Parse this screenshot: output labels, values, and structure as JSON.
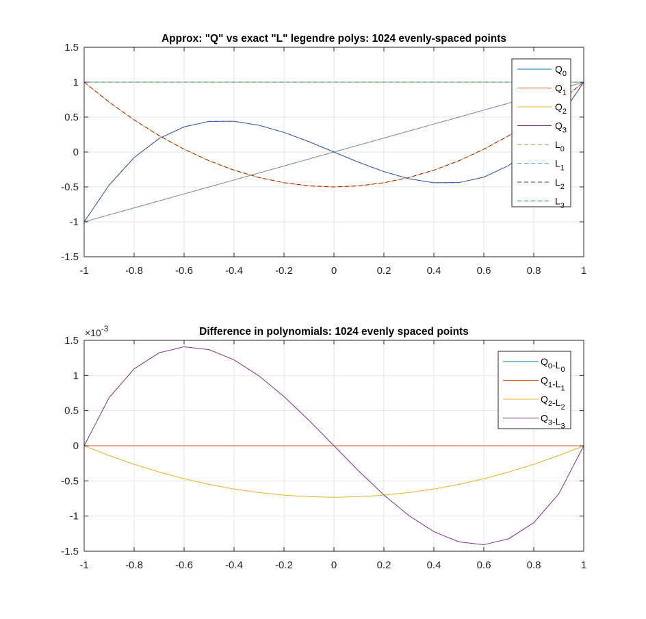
{
  "chart_data": [
    {
      "type": "line",
      "title": "Approx: \"Q\" vs exact \"L\" legendre polys: 1024 evenly-spaced points",
      "xlabel": "",
      "ylabel": "",
      "xlim": [
        -1,
        1
      ],
      "ylim": [
        -1.5,
        1.5
      ],
      "xticks": [
        -1,
        -0.8,
        -0.6,
        -0.4,
        -0.2,
        0,
        0.2,
        0.4,
        0.6,
        0.8,
        1
      ],
      "xtick_labels": [
        "-1",
        "-0.8",
        "-0.6",
        "-0.4",
        "-0.2",
        "0",
        "0.2",
        "0.4",
        "0.6",
        "0.8",
        "1"
      ],
      "yticks": [
        -1.5,
        -1,
        -0.5,
        0,
        0.5,
        1,
        1.5
      ],
      "ytick_labels": [
        "-1.5",
        "-1",
        "-0.5",
        "0",
        "0.5",
        "1",
        "1.5"
      ],
      "grid": true,
      "legend_position": "top-right",
      "x": [
        -1,
        -0.9,
        -0.8,
        -0.7,
        -0.6,
        -0.5,
        -0.4,
        -0.3,
        -0.2,
        -0.1,
        0,
        0.1,
        0.2,
        0.3,
        0.4,
        0.5,
        0.6,
        0.7,
        0.8,
        0.9,
        1
      ],
      "series": [
        {
          "name": "Q",
          "sub": "0",
          "color": "#0072BD",
          "dash": "solid",
          "values": [
            1,
            1,
            1,
            1,
            1,
            1,
            1,
            1,
            1,
            1,
            1,
            1,
            1,
            1,
            1,
            1,
            1,
            1,
            1,
            1,
            1
          ]
        },
        {
          "name": "Q",
          "sub": "1",
          "color": "#D95319",
          "dash": "solid",
          "values": [
            -1,
            -0.9,
            -0.8,
            -0.7,
            -0.6,
            -0.5,
            -0.4,
            -0.3,
            -0.2,
            -0.1,
            0,
            0.1,
            0.2,
            0.3,
            0.4,
            0.5,
            0.6,
            0.7,
            0.8,
            0.9,
            1
          ]
        },
        {
          "name": "Q",
          "sub": "2",
          "color": "#EDB120",
          "dash": "solid",
          "values": [
            1,
            0.715,
            0.46,
            0.235,
            0.04,
            -0.125,
            -0.26,
            -0.365,
            -0.44,
            -0.485,
            -0.5,
            -0.485,
            -0.44,
            -0.365,
            -0.26,
            -0.125,
            0.04,
            0.235,
            0.46,
            0.715,
            1
          ]
        },
        {
          "name": "Q",
          "sub": "3",
          "color": "#7E2F8E",
          "dash": "solid",
          "values": [
            -1,
            -0.473,
            -0.08,
            0.193,
            0.36,
            0.438,
            0.44,
            0.383,
            0.28,
            0.148,
            0,
            -0.148,
            -0.28,
            -0.383,
            -0.44,
            -0.438,
            -0.36,
            -0.193,
            0.08,
            0.473,
            1
          ]
        },
        {
          "name": "L",
          "sub": "0",
          "color": "#77AC30",
          "dash": "dashed",
          "values": [
            1,
            1,
            1,
            1,
            1,
            1,
            1,
            1,
            1,
            1,
            1,
            1,
            1,
            1,
            1,
            1,
            1,
            1,
            1,
            1,
            1
          ]
        },
        {
          "name": "L",
          "sub": "1",
          "color": "#4DBEEE",
          "dash": "dashed",
          "values": [
            -1,
            -0.9,
            -0.8,
            -0.7,
            -0.6,
            -0.5,
            -0.4,
            -0.3,
            -0.2,
            -0.1,
            0,
            0.1,
            0.2,
            0.3,
            0.4,
            0.5,
            0.6,
            0.7,
            0.8,
            0.9,
            1
          ]
        },
        {
          "name": "L",
          "sub": "2",
          "color": "#A2142F",
          "dash": "dashed",
          "values": [
            1,
            0.715,
            0.46,
            0.235,
            0.04,
            -0.125,
            -0.26,
            -0.365,
            -0.44,
            -0.485,
            -0.5,
            -0.485,
            -0.44,
            -0.365,
            -0.26,
            -0.125,
            0.04,
            0.235,
            0.46,
            0.715,
            1
          ]
        },
        {
          "name": "L",
          "sub": "3",
          "color": "#0072BD",
          "dash": "dashed",
          "values": [
            -1,
            -0.473,
            -0.08,
            0.193,
            0.36,
            0.438,
            0.44,
            0.383,
            0.28,
            0.148,
            0,
            -0.148,
            -0.28,
            -0.383,
            -0.44,
            -0.438,
            -0.36,
            -0.193,
            0.08,
            0.473,
            1
          ]
        }
      ]
    },
    {
      "type": "line",
      "title": "Difference in polynomials: 1024 evenly spaced points",
      "xlabel": "",
      "ylabel": "",
      "y_exponent_label": "×10",
      "y_exponent_value": "-3",
      "xlim": [
        -1,
        1
      ],
      "ylim": [
        -1.5,
        1.5
      ],
      "xticks": [
        -1,
        -0.8,
        -0.6,
        -0.4,
        -0.2,
        0,
        0.2,
        0.4,
        0.6,
        0.8,
        1
      ],
      "xtick_labels": [
        "-1",
        "-0.8",
        "-0.6",
        "-0.4",
        "-0.2",
        "0",
        "0.2",
        "0.4",
        "0.6",
        "0.8",
        "1"
      ],
      "yticks": [
        -1.5,
        -1,
        -0.5,
        0,
        0.5,
        1,
        1.5
      ],
      "ytick_labels": [
        "-1.5",
        "-1",
        "-0.5",
        "0",
        "0.5",
        "1",
        "1.5"
      ],
      "grid": true,
      "legend_position": "top-right",
      "x": [
        -1,
        -0.9,
        -0.8,
        -0.7,
        -0.6,
        -0.5,
        -0.4,
        -0.3,
        -0.2,
        -0.1,
        0,
        0.1,
        0.2,
        0.3,
        0.4,
        0.5,
        0.6,
        0.7,
        0.8,
        0.9,
        1
      ],
      "series": [
        {
          "name": "Q",
          "sub": "0",
          "name2": "-L",
          "sub2": "0",
          "color": "#0072BD",
          "dash": "solid",
          "values": [
            0,
            0,
            0,
            0,
            0,
            0,
            0,
            0,
            0,
            0,
            0,
            0,
            0,
            0,
            0,
            0,
            0,
            0,
            0,
            0,
            0
          ]
        },
        {
          "name": "Q",
          "sub": "1",
          "name2": "-L",
          "sub2": "1",
          "color": "#D95319",
          "dash": "solid",
          "values": [
            0,
            0,
            0,
            0,
            0,
            0,
            0,
            0,
            0,
            0,
            0,
            0,
            0,
            0,
            0,
            0,
            0,
            0,
            0,
            0,
            0
          ]
        },
        {
          "name": "Q",
          "sub": "2",
          "name2": "-L",
          "sub2": "2",
          "color": "#EDB120",
          "dash": "solid",
          "values": [
            0,
            -0.139,
            -0.264,
            -0.374,
            -0.469,
            -0.549,
            -0.615,
            -0.666,
            -0.703,
            -0.725,
            -0.733,
            -0.725,
            -0.703,
            -0.666,
            -0.615,
            -0.549,
            -0.469,
            -0.374,
            -0.264,
            -0.139,
            0
          ]
        },
        {
          "name": "Q",
          "sub": "3",
          "name2": "-L",
          "sub2": "3",
          "color": "#7E2F8E",
          "dash": "solid",
          "values": [
            0,
            0.685,
            1.094,
            1.322,
            1.408,
            1.367,
            1.222,
            0.993,
            0.7,
            0.362,
            0,
            -0.362,
            -0.7,
            -0.993,
            -1.222,
            -1.367,
            -1.408,
            -1.322,
            -1.094,
            -0.685,
            0
          ]
        }
      ]
    }
  ]
}
